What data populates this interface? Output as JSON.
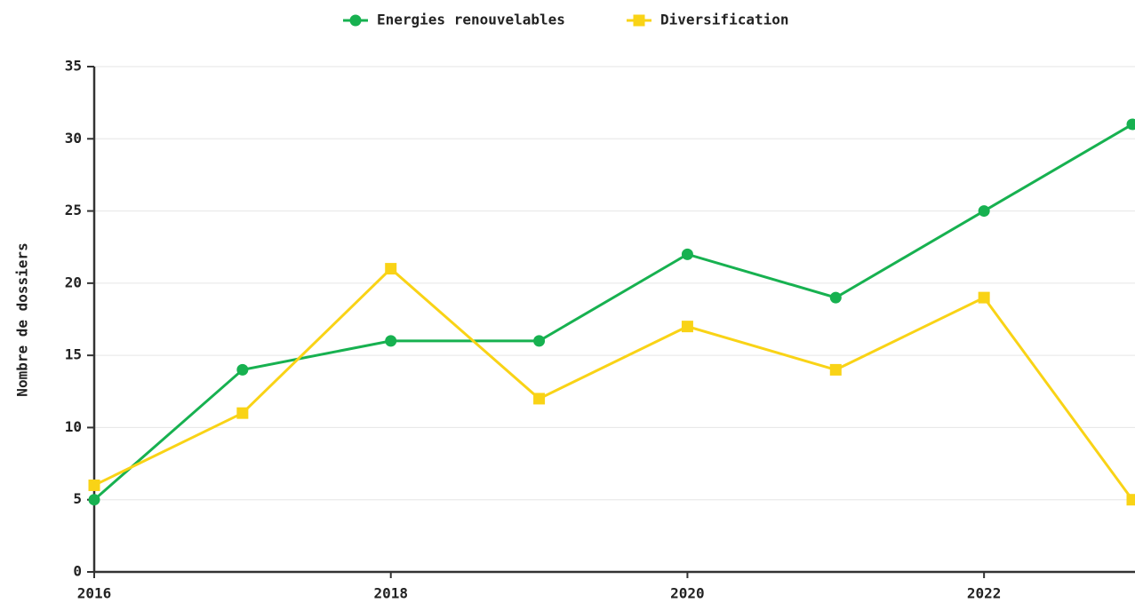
{
  "chart_data": {
    "type": "line",
    "y_label": "Nombre de dossiers",
    "x": [
      2016,
      2017,
      2018,
      2019,
      2020,
      2021,
      2022,
      2023
    ],
    "series": [
      {
        "name": "Energies renouvelables",
        "color": "#17b150",
        "marker": "circle",
        "values": [
          5,
          14,
          16,
          16,
          22,
          19,
          25,
          31
        ]
      },
      {
        "name": "Diversification",
        "color": "#f9d316",
        "marker": "square",
        "values": [
          6,
          11,
          21,
          12,
          17,
          14,
          19,
          5
        ]
      }
    ],
    "xlim": [
      2016,
      2023
    ],
    "xticks": [
      2016,
      2018,
      2020,
      2022
    ],
    "ylim": [
      0,
      35
    ],
    "yticks": [
      0,
      5,
      10,
      15,
      20,
      25,
      30,
      35
    ],
    "grid": true,
    "legend": "top"
  }
}
